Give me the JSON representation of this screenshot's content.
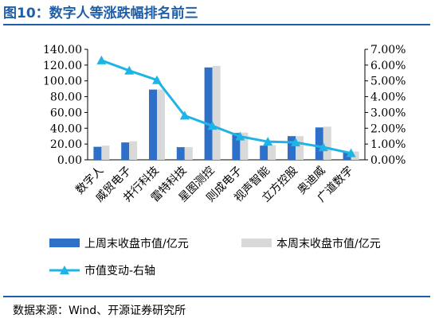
{
  "figure": {
    "title": "图10：数字人等涨跌幅排名前三",
    "source": "数据来源：Wind、开源证券研究所"
  },
  "chart_data": {
    "type": "bar",
    "categories": [
      "数字人",
      "威贸电子",
      "井行科技",
      "雷特科技",
      "星图测控",
      "则成电子",
      "视声智能",
      "立方控股",
      "奥迪威",
      "广道数字"
    ],
    "series": [
      {
        "name": "上周末收盘市值/亿元",
        "type": "bar",
        "axis": "left",
        "color": "#2e6fc8",
        "values": [
          16.5,
          22,
          89,
          16,
          117,
          34,
          18,
          30,
          41,
          10
        ]
      },
      {
        "name": "本周末收盘市值/亿元",
        "type": "bar",
        "axis": "left",
        "color": "#d9d9d9",
        "values": [
          18,
          23.5,
          89,
          16,
          119,
          34.5,
          18.5,
          30,
          42,
          10.5
        ]
      },
      {
        "name": "市值变动-右轴",
        "type": "line",
        "axis": "right",
        "color": "#1fb4e6",
        "marker": "triangle",
        "values": [
          6.3,
          5.65,
          5.05,
          2.8,
          2.15,
          1.48,
          1.15,
          1.1,
          0.8,
          0.42
        ]
      }
    ],
    "y_left": {
      "min": 0,
      "max": 140,
      "ticks": [
        "0.00",
        "20.00",
        "40.00",
        "60.00",
        "80.00",
        "100.00",
        "120.00",
        "140.00"
      ]
    },
    "y_right": {
      "min": 0,
      "max": 7,
      "ticks": [
        "0.00%",
        "1.00%",
        "2.00%",
        "3.00%",
        "4.00%",
        "5.00%",
        "6.00%",
        "7.00%"
      ]
    },
    "grid": false,
    "legend": "bottom"
  }
}
